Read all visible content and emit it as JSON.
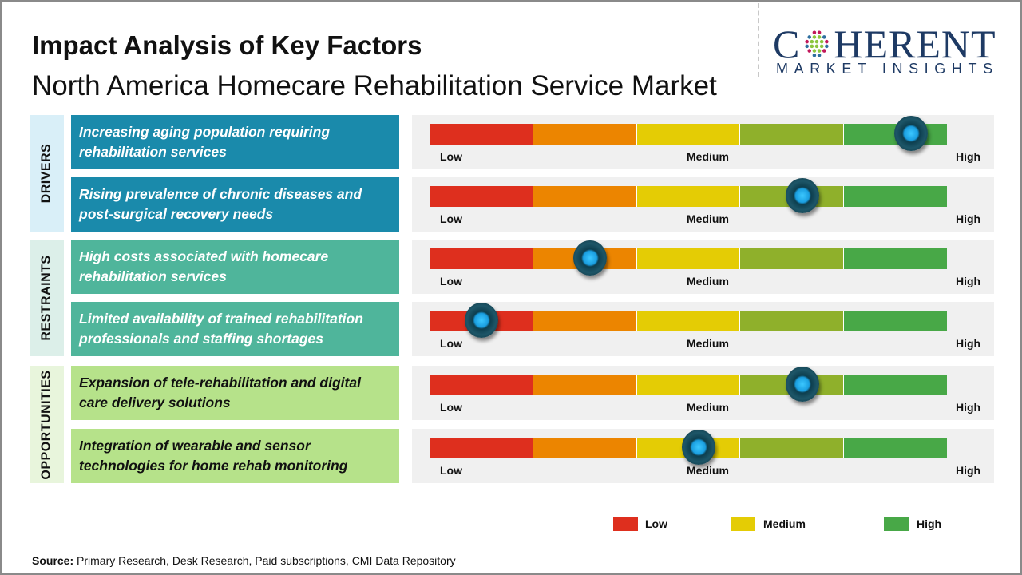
{
  "title": "Impact Analysis of Key Factors",
  "subtitle": "North America Homecare Rehabilitation Service Market",
  "logo": {
    "main_left": "C",
    "main_right": "HERENT",
    "sub": "MARKET INSIGHTS"
  },
  "colors": {
    "drivers": "#1a8aab",
    "drivers_label_bg": "#d9eff8",
    "restraints": "#4fb59b",
    "restraints_label_bg": "#dcefe9",
    "opportunities": "#b6e28a",
    "opportunities_label_bg": "#e8f5dc",
    "scale": [
      "#de2f1e",
      "#ec8500",
      "#e4cc05",
      "#8fb02b",
      "#48a847"
    ]
  },
  "scale_labels": {
    "low": "Low",
    "medium": "Medium",
    "high": "High"
  },
  "categories": [
    {
      "name": "DRIVERS",
      "items": [
        {
          "text": "Increasing aging population requiring rehabilitation services",
          "impact": 0.93
        },
        {
          "text": "Rising prevalence of chronic diseases and post-surgical recovery needs",
          "impact": 0.72
        }
      ]
    },
    {
      "name": "RESTRAINTS",
      "items": [
        {
          "text": "High costs associated with homecare rehabilitation services",
          "impact": 0.31
        },
        {
          "text": "Limited availability of trained rehabilitation professionals and staffing shortages",
          "impact": 0.1
        }
      ]
    },
    {
      "name": "OPPORTUNITIES",
      "items": [
        {
          "text": "Expansion of tele-rehabilitation and digital care delivery solutions",
          "impact": 0.72
        },
        {
          "text": "Integration of wearable and sensor technologies for home rehab monitoring",
          "impact": 0.52
        }
      ]
    }
  ],
  "legend": [
    {
      "label": "Low",
      "color": "#de2f1e"
    },
    {
      "label": "Medium",
      "color": "#e4cc05"
    },
    {
      "label": "High",
      "color": "#48a847"
    }
  ],
  "source": {
    "label": "Source:",
    "text": " Primary Research, Desk Research, Paid subscriptions, CMI Data Repository"
  }
}
